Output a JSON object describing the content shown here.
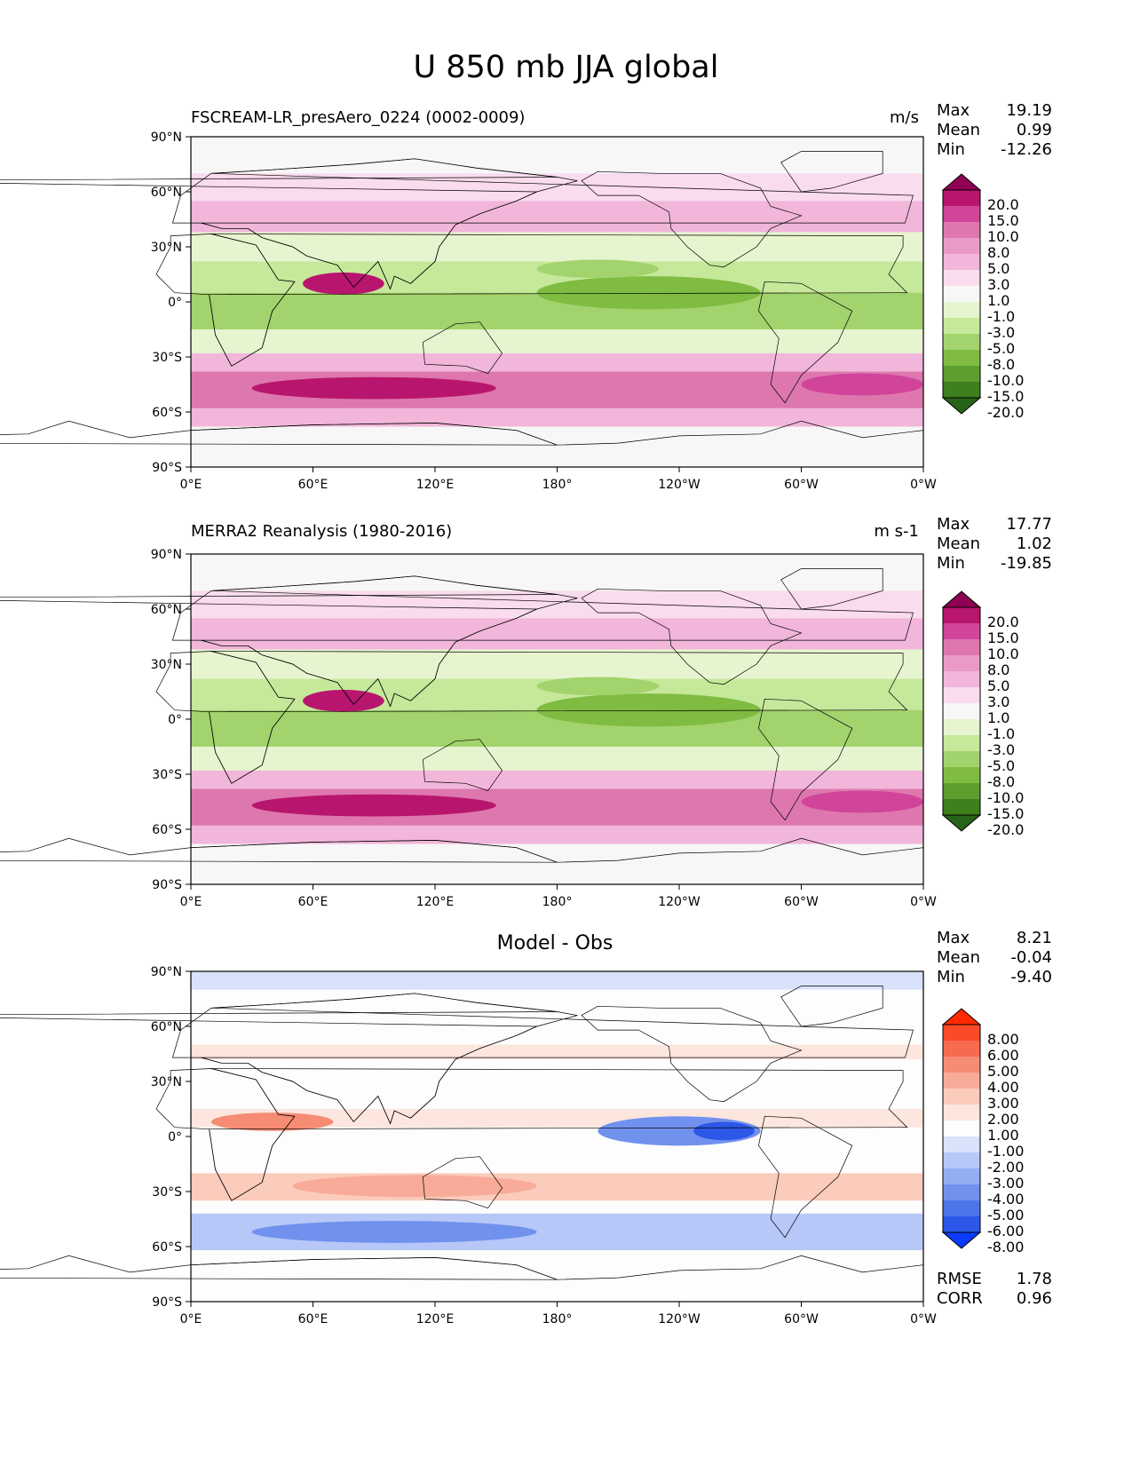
{
  "title": "U 850 mb JJA global",
  "axes": {
    "lat_ticks": [
      "90°N",
      "60°N",
      "30°N",
      "0°",
      "30°S",
      "60°S",
      "90°S"
    ],
    "lon_ticks": [
      "0°E",
      "60°E",
      "120°E",
      "180°",
      "120°W",
      "60°W",
      "0°W"
    ]
  },
  "panels": [
    {
      "label": "FSCREAM-LR_presAero_0224 (0002-0009)",
      "label_position": "left",
      "units": "m/s",
      "stats": [
        {
          "name": "Max",
          "value": "19.19"
        },
        {
          "name": "Mean",
          "value": "0.99"
        },
        {
          "name": "Min",
          "value": "-12.26"
        }
      ],
      "colorbar": {
        "labels": [
          "20.0",
          "15.0",
          "10.0",
          "8.0",
          "5.0",
          "3.0",
          "1.0",
          "-1.0",
          "-3.0",
          "-5.0",
          "-8.0",
          "-10.0",
          "-15.0",
          "-20.0"
        ],
        "colors": [
          "#8e0152",
          "#b8166e",
          "#d0449a",
          "#de77ae",
          "#e99ac7",
          "#f1b6da",
          "#f9dced",
          "#f7f7f7",
          "#e6f5d0",
          "#c6e89a",
          "#a3d36c",
          "#7fbc41",
          "#5d9e2f",
          "#3e7f1e",
          "#276419"
        ]
      }
    },
    {
      "label": "MERRA2 Reanalysis (1980-2016)",
      "label_position": "left",
      "units": "m s-1",
      "stats": [
        {
          "name": "Max",
          "value": "17.77"
        },
        {
          "name": "Mean",
          "value": "1.02"
        },
        {
          "name": "Min",
          "value": "-19.85"
        }
      ],
      "colorbar": {
        "labels": [
          "20.0",
          "15.0",
          "10.0",
          "8.0",
          "5.0",
          "3.0",
          "1.0",
          "-1.0",
          "-3.0",
          "-5.0",
          "-8.0",
          "-10.0",
          "-15.0",
          "-20.0"
        ],
        "colors": [
          "#8e0152",
          "#b8166e",
          "#d0449a",
          "#de77ae",
          "#e99ac7",
          "#f1b6da",
          "#f9dced",
          "#f7f7f7",
          "#e6f5d0",
          "#c6e89a",
          "#a3d36c",
          "#7fbc41",
          "#5d9e2f",
          "#3e7f1e",
          "#276419"
        ]
      }
    },
    {
      "label": "Model - Obs",
      "label_position": "center",
      "units": "",
      "stats": [
        {
          "name": "Max",
          "value": "8.21"
        },
        {
          "name": "Mean",
          "value": "-0.04"
        },
        {
          "name": "Min",
          "value": "-9.40"
        }
      ],
      "extra_stats": [
        {
          "name": "RMSE",
          "value": "1.78"
        },
        {
          "name": "CORR",
          "value": "0.96"
        }
      ],
      "colorbar": {
        "labels": [
          "8.00",
          "6.00",
          "5.00",
          "4.00",
          "3.00",
          "2.00",
          "1.00",
          "-1.00",
          "-2.00",
          "-3.00",
          "-4.00",
          "-5.00",
          "-6.00",
          "-8.00"
        ],
        "colors": [
          "#ff2a00",
          "#fb4a2a",
          "#f76a4f",
          "#f68c74",
          "#f8ab98",
          "#fbcbbc",
          "#fde6dd",
          "#fdfdfd",
          "#d9e2fb",
          "#b7c8f8",
          "#94aef3",
          "#7191ee",
          "#4e74ea",
          "#2c57e8",
          "#0a3bff"
        ]
      }
    }
  ],
  "chart_data": [
    {
      "type": "heatmap",
      "title": "FSCREAM-LR_presAero_0224 (0002-0009)",
      "variable": "U 850 mb JJA",
      "units": "m/s",
      "xlim": [
        0,
        360
      ],
      "ylim": [
        -90,
        90
      ],
      "levels": [
        -20,
        -15,
        -10,
        -8,
        -5,
        -3,
        -1,
        1,
        3,
        5,
        8,
        10,
        15,
        20
      ],
      "max": 19.19,
      "mean": 0.99,
      "min": -12.26
    },
    {
      "type": "heatmap",
      "title": "MERRA2 Reanalysis (1980-2016)",
      "variable": "U 850 mb JJA",
      "units": "m s-1",
      "xlim": [
        0,
        360
      ],
      "ylim": [
        -90,
        90
      ],
      "levels": [
        -20,
        -15,
        -10,
        -8,
        -5,
        -3,
        -1,
        1,
        3,
        5,
        8,
        10,
        15,
        20
      ],
      "max": 17.77,
      "mean": 1.02,
      "min": -19.85
    },
    {
      "type": "heatmap",
      "title": "Model - Obs",
      "xlim": [
        0,
        360
      ],
      "ylim": [
        -90,
        90
      ],
      "levels": [
        -8,
        -6,
        -5,
        -4,
        -3,
        -2,
        -1,
        1,
        2,
        3,
        4,
        5,
        6,
        8
      ],
      "max": 8.21,
      "mean": -0.04,
      "min": -9.4,
      "rmse": 1.78,
      "corr": 0.96
    }
  ]
}
